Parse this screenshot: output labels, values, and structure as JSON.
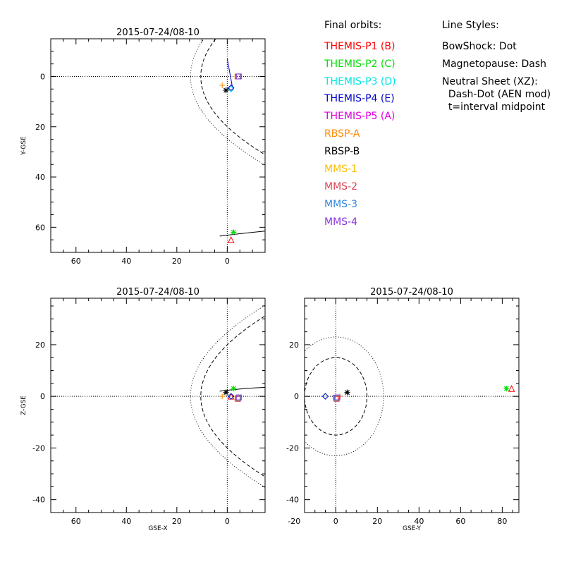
{
  "chart_data": [
    {
      "type": "scatter",
      "title": "2015-07-24/08-10",
      "xlabel": "",
      "ylabel": "Y-GSE",
      "xlim": [
        70,
        -15
      ],
      "ylim": [
        -15,
        70
      ],
      "xticks": [
        "60",
        "40",
        "20",
        "0"
      ],
      "yticks": [
        "0",
        "20",
        "40",
        "60"
      ]
    },
    {
      "type": "scatter",
      "title": "2015-07-24/08-10",
      "xlabel": "GSE-X",
      "ylabel": "Z-GSE",
      "xlim": [
        70,
        -15
      ],
      "ylim": [
        -45,
        38
      ],
      "xticks": [
        "60",
        "40",
        "20",
        "0"
      ],
      "yticks": [
        "20",
        "0",
        "-20",
        "-40"
      ]
    },
    {
      "type": "scatter",
      "title": "2015-07-24/08-10",
      "xlabel": "GSE-Y",
      "ylabel": "",
      "xlim": [
        -15,
        88
      ],
      "ylim": [
        -45,
        38
      ],
      "xticks": [
        "-20",
        "0",
        "20",
        "40",
        "60",
        "80"
      ],
      "yticks": [
        "20",
        "0",
        "-20",
        "-40"
      ]
    }
  ],
  "legend": {
    "heading": "Final orbits:",
    "items": [
      {
        "label": "THEMIS-P1 (B)",
        "color": "#ff0000"
      },
      {
        "label": "THEMIS-P2 (C)",
        "color": "#00dd00"
      },
      {
        "label": "THEMIS-P3 (D)",
        "color": "#00e5e5"
      },
      {
        "label": "THEMIS-P4 (E)",
        "color": "#0000cc"
      },
      {
        "label": "THEMIS-P5 (A)",
        "color": "#dd00dd"
      },
      {
        "label": "RBSP-A",
        "color": "#ff8800"
      },
      {
        "label": "RBSP-B",
        "color": "#000000"
      },
      {
        "label": "MMS-1",
        "color": "#ffbb00"
      },
      {
        "label": "MMS-2",
        "color": "#dd4455"
      },
      {
        "label": "MMS-3",
        "color": "#3388dd"
      },
      {
        "label": "MMS-4",
        "color": "#8833dd"
      }
    ]
  },
  "line_styles": {
    "heading": "Line Styles:",
    "lines": [
      "BowShock: Dot",
      "Magnetopause: Dash",
      "Neutral Sheet (XZ):",
      "  Dash-Dot (AEN mod)",
      "  t=interval midpoint"
    ]
  }
}
